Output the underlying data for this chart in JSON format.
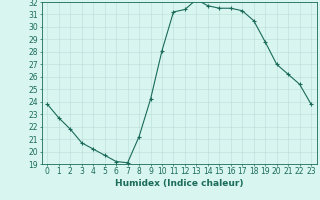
{
  "title": "",
  "xlabel": "Humidex (Indice chaleur)",
  "ylabel": "",
  "x_values": [
    0,
    1,
    2,
    3,
    4,
    5,
    6,
    7,
    8,
    9,
    10,
    11,
    12,
    13,
    14,
    15,
    16,
    17,
    18,
    19,
    20,
    21,
    22,
    23
  ],
  "y_values": [
    23.8,
    22.7,
    21.8,
    20.7,
    20.2,
    19.7,
    19.2,
    19.1,
    21.2,
    24.2,
    28.1,
    31.2,
    31.4,
    32.2,
    31.7,
    31.5,
    31.5,
    31.3,
    30.5,
    28.8,
    27.0,
    26.2,
    25.4,
    23.8
  ],
  "line_color": "#1a6b5a",
  "marker": "+",
  "marker_size": 3,
  "bg_color": "#d8f5f0",
  "grid_color": "#b8ddd8",
  "ylim": [
    19,
    32
  ],
  "xlim": [
    -0.5,
    23.5
  ],
  "yticks": [
    19,
    20,
    21,
    22,
    23,
    24,
    25,
    26,
    27,
    28,
    29,
    30,
    31,
    32
  ],
  "xticks": [
    0,
    1,
    2,
    3,
    4,
    5,
    6,
    7,
    8,
    9,
    10,
    11,
    12,
    13,
    14,
    15,
    16,
    17,
    18,
    19,
    20,
    21,
    22,
    23
  ],
  "tick_fontsize": 5.5,
  "xlabel_fontsize": 6.5,
  "label_color": "#1a6b5a",
  "spine_color": "#1a6b5a",
  "linewidth": 0.8,
  "markeredgewidth": 0.8
}
